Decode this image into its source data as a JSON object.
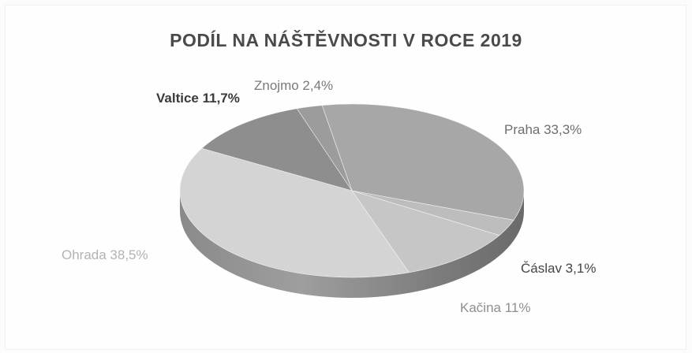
{
  "chart_data": {
    "type": "pie",
    "title": "PODÍL NA NÁŠTĚVNOSTI V ROCE 2019",
    "slices": [
      {
        "name": "Praha",
        "label": "Praha 33,3%",
        "value": 33.3,
        "color": "#a7a7a7"
      },
      {
        "name": "Čáslav",
        "label": "Čáslav 3,1%",
        "value": 3.1,
        "color": "#bdbdbd"
      },
      {
        "name": "Kačina",
        "label": "Kačina 11%",
        "value": 11.0,
        "color": "#c6c6c6"
      },
      {
        "name": "Ohrada",
        "label": "Ohrada 38,5%",
        "value": 38.5,
        "color": "#d4d4d4"
      },
      {
        "name": "Valtice",
        "label": "Valtice 11,7%",
        "value": 11.7,
        "color": "#8e8e8e"
      },
      {
        "name": "Znojmo",
        "label": "Znojmo 2,4%",
        "value": 2.4,
        "color": "#9c9c9c"
      }
    ],
    "style": "3d-pie",
    "legend": "none",
    "data_labels": "outside"
  }
}
